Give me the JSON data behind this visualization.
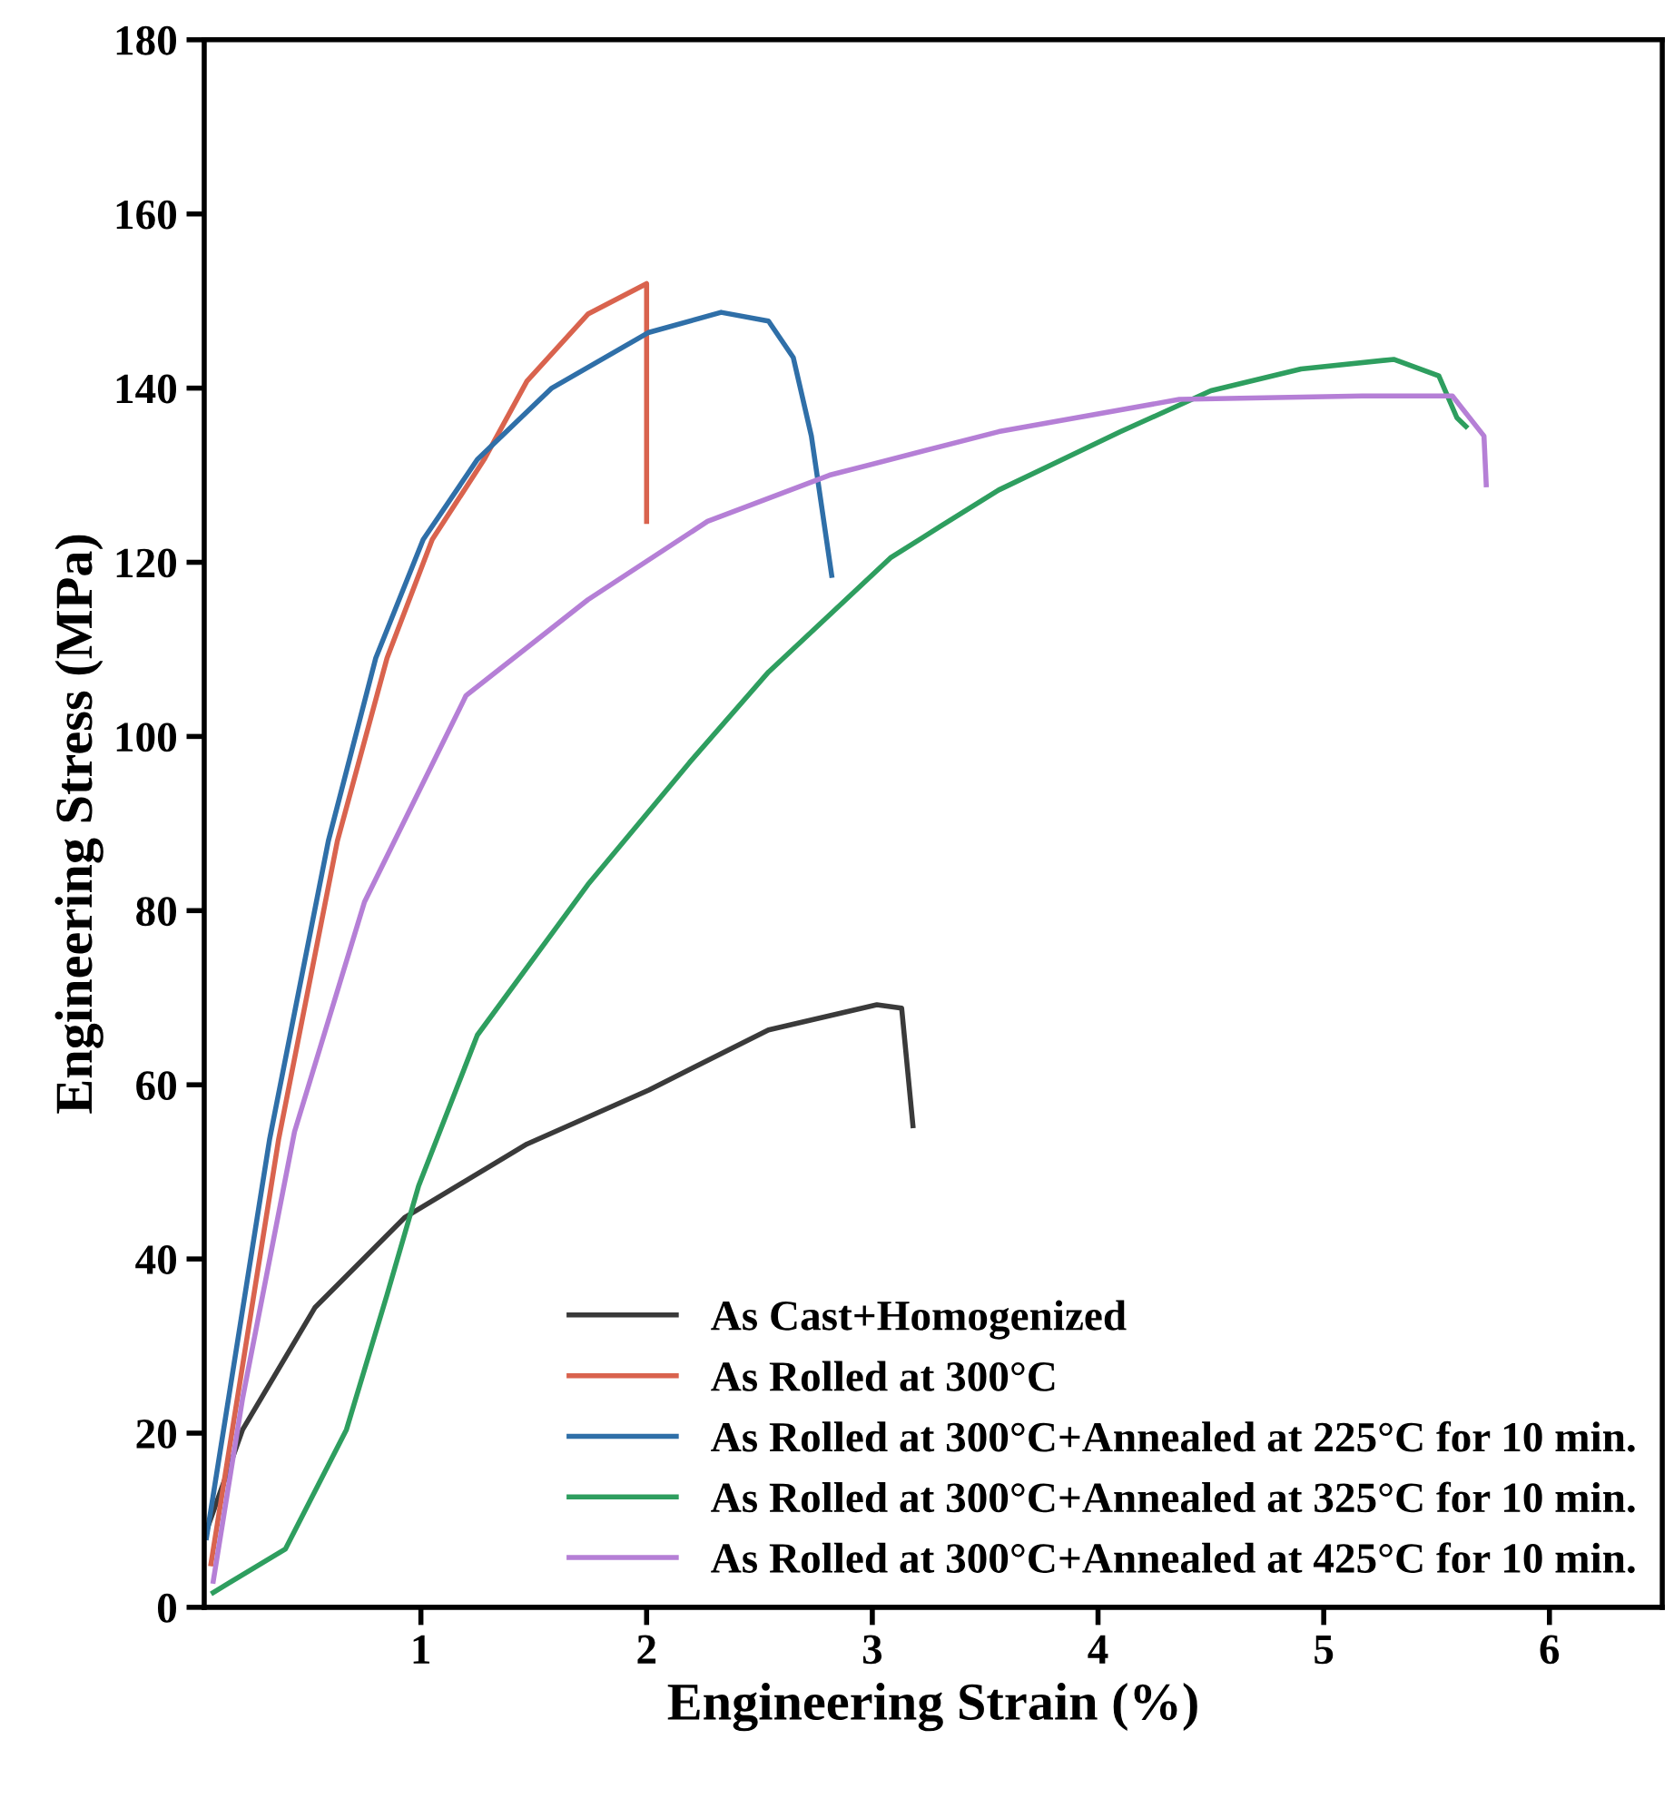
{
  "chart_data": {
    "type": "line",
    "xlabel": "Engineering Strain (%)",
    "ylabel": "Engineering Stress (MPa)",
    "xlim": [
      0.04,
      6.5
    ],
    "ylim": [
      0,
      180
    ],
    "xticks": [
      1,
      2,
      3,
      4,
      5,
      6
    ],
    "yticks": [
      0,
      20,
      40,
      60,
      80,
      100,
      120,
      140,
      160,
      180
    ],
    "grid": false,
    "legend": "bottom right",
    "marker": "none",
    "line_style": "solid",
    "series": [
      {
        "name": "As Cast+Homogenized",
        "color": "#3a3a3a",
        "x": [
          0.05,
          0.21,
          0.53,
          0.93,
          1.47,
          2.01,
          2.54,
          3.02,
          3.13,
          3.18
        ],
        "values": [
          8.8,
          20.4,
          34.4,
          44.8,
          53.2,
          59.4,
          66.3,
          69.2,
          68.8,
          55.3
        ]
      },
      {
        "name": "As Rolled at 300°C",
        "color": "#d9634e",
        "x": [
          0.07,
          0.37,
          0.63,
          0.85,
          1.05,
          1.28,
          1.47,
          1.74,
          2.0,
          2.0
        ],
        "values": [
          5,
          53.8,
          88,
          109,
          122.6,
          131.8,
          140.8,
          148.5,
          152,
          124.7
        ]
      },
      {
        "name": "As Rolled at 300°C+Annealed at 225°C for 10 min.",
        "color": "#2f6fa8",
        "x": [
          0.05,
          0.33,
          0.59,
          0.8,
          1.01,
          1.25,
          1.58,
          2.01,
          2.33,
          2.54,
          2.65,
          2.73,
          2.82
        ],
        "values": [
          8,
          53.8,
          88,
          109,
          122.6,
          131.8,
          140,
          146.4,
          148.7,
          147.7,
          143.5,
          134.5,
          118.5
        ]
      },
      {
        "name": "As Rolled at 300°C+Annealed at 325°C for 10 min.",
        "color": "#2e9e5f",
        "x": [
          0.08,
          0.4,
          0.67,
          0.85,
          0.99,
          1.25,
          1.74,
          2.19,
          2.54,
          3.08,
          3.3,
          3.56,
          4.1,
          4.5,
          4.9,
          5.31,
          5.51,
          5.59,
          5.63
        ],
        "values": [
          1.7,
          6.7,
          20.4,
          35.9,
          48.4,
          65.7,
          83,
          97,
          107.4,
          120.5,
          124.1,
          128.3,
          135,
          139.7,
          142.2,
          143.3,
          141.4,
          136.6,
          135.6
        ]
      },
      {
        "name": "As Rolled at 300°C+Annealed at 425°C for 10 min.",
        "color": "#b57fd6",
        "x": [
          0.08,
          0.21,
          0.44,
          0.75,
          1.2,
          1.74,
          2.27,
          2.81,
          3.56,
          4.36,
          5.17,
          5.57,
          5.71,
          5.72
        ],
        "values": [
          3,
          24,
          54.6,
          81,
          104.7,
          115.7,
          124.7,
          130,
          135,
          138.7,
          139.1,
          139.1,
          134.5,
          128.9
        ]
      }
    ]
  }
}
